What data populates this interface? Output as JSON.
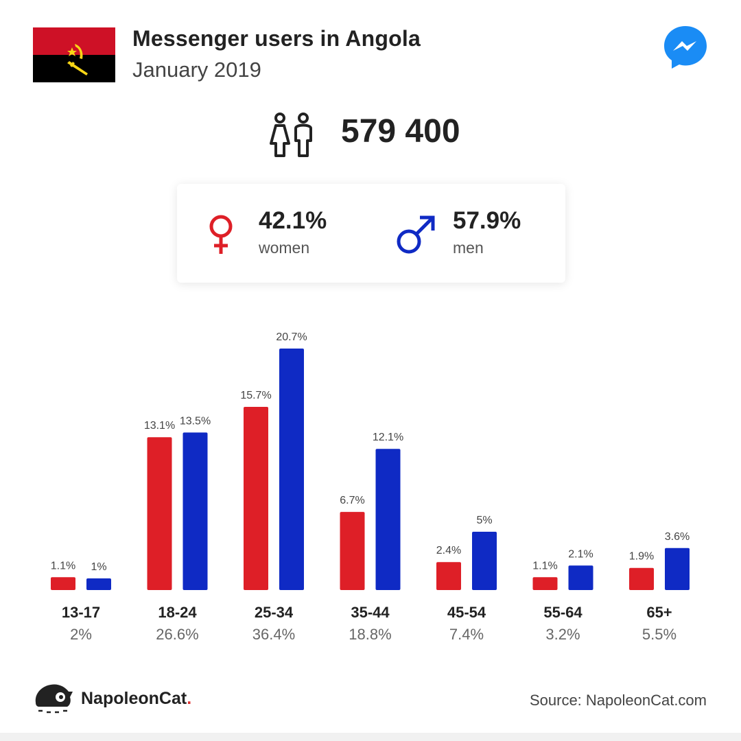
{
  "header": {
    "title": "Messenger users in Angola",
    "subtitle": "January 2019",
    "flag_icon": "angola-flag-icon",
    "app_icon": "messenger-icon"
  },
  "total": {
    "icon": "people-icon",
    "value": "579 400"
  },
  "gender": {
    "women": {
      "pct": "42.1%",
      "label": "women",
      "icon": "female-symbol-icon"
    },
    "men": {
      "pct": "57.9%",
      "label": "men",
      "icon": "male-symbol-icon"
    }
  },
  "colors": {
    "women": "#de1f27",
    "men": "#0f2ac4"
  },
  "chart_data": {
    "type": "bar",
    "categories": [
      "13-17",
      "18-24",
      "25-34",
      "35-44",
      "45-54",
      "55-64",
      "65+"
    ],
    "category_totals": [
      "2%",
      "26.6%",
      "36.4%",
      "18.8%",
      "7.4%",
      "3.2%",
      "5.5%"
    ],
    "series": [
      {
        "key": "women",
        "values": [
          1.1,
          13.1,
          15.7,
          6.7,
          2.4,
          1.1,
          1.9
        ],
        "labels": [
          "1.1%",
          "13.1%",
          "15.7%",
          "6.7%",
          "2.4%",
          "1.1%",
          "1.9%"
        ]
      },
      {
        "key": "men",
        "values": [
          1,
          13.5,
          20.7,
          12.1,
          5,
          2.1,
          3.6
        ],
        "labels": [
          "1%",
          "13.5%",
          "20.7%",
          "12.1%",
          "5%",
          "2.1%",
          "3.6%"
        ]
      }
    ],
    "ylim": [
      0,
      20.7
    ],
    "grid": false
  },
  "footer": {
    "brand": "NapoleonCat",
    "brand_dot": ".",
    "logo_icon": "napoleoncat-logo-icon",
    "source": "Source: NapoleonCat.com"
  }
}
